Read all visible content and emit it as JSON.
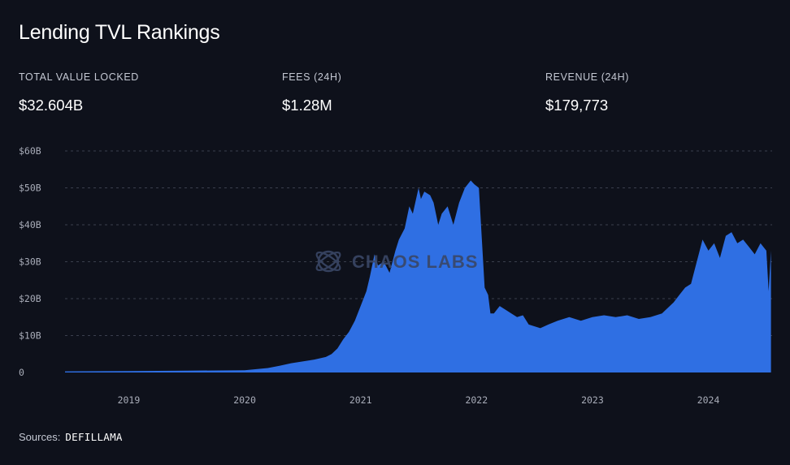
{
  "page": {
    "title": "Lending TVL Rankings",
    "metrics": [
      {
        "label": "TOTAL VALUE LOCKED",
        "value": "$32.604B"
      },
      {
        "label": "FEES (24H)",
        "value": "$1.28M"
      },
      {
        "label": "REVENUE (24H)",
        "value": "$179,773"
      }
    ],
    "watermark": "CHAOS LABS",
    "sources_label": "Sources:",
    "sources_value": "DEFILLAMA"
  },
  "colors": {
    "background": "#0e111b",
    "area_fill": "#2f6fe3",
    "gridline": "#3a3f4d",
    "text_muted": "#a9adb9"
  },
  "chart_data": {
    "type": "area",
    "y_tick_labels": [
      "0",
      "$10B",
      "$20B",
      "$30B",
      "$40B",
      "$50B",
      "$60B"
    ],
    "y_ticks": [
      0,
      10,
      20,
      30,
      40,
      50,
      60
    ],
    "x_tick_labels": [
      "2019",
      "2020",
      "2021",
      "2022",
      "2023",
      "2024"
    ],
    "x_ticks": [
      2019,
      2020,
      2021,
      2022,
      2023,
      2024
    ],
    "xlim": [
      2018.45,
      2024.55
    ],
    "ylim": [
      0,
      60
    ],
    "grid": "horizontal dashed",
    "series": [
      {
        "x": [
          2018.45,
          2019.0,
          2019.5,
          2020.0,
          2020.2,
          2020.3,
          2020.4,
          2020.5,
          2020.6,
          2020.7,
          2020.75,
          2020.8,
          2020.85,
          2020.9,
          2020.95,
          2021.0,
          2021.05,
          2021.08,
          2021.12,
          2021.15,
          2021.2,
          2021.25,
          2021.3,
          2021.33,
          2021.38,
          2021.42,
          2021.45,
          2021.5,
          2021.52,
          2021.55,
          2021.6,
          2021.63,
          2021.67,
          2021.7,
          2021.75,
          2021.8,
          2021.85,
          2021.9,
          2021.95,
          2021.98,
          2022.02,
          2022.07,
          2022.1,
          2022.12,
          2022.15,
          2022.2,
          2022.3,
          2022.35,
          2022.4,
          2022.45,
          2022.55,
          2022.62,
          2022.7,
          2022.8,
          2022.9,
          2023.0,
          2023.1,
          2023.2,
          2023.3,
          2023.4,
          2023.5,
          2023.6,
          2023.7,
          2023.75,
          2023.8,
          2023.85,
          2023.9,
          2023.95,
          2024.0,
          2024.05,
          2024.1,
          2024.15,
          2024.2,
          2024.25,
          2024.3,
          2024.35,
          2024.4,
          2024.45,
          2024.5,
          2024.52,
          2024.54
        ],
        "y": [
          0.3,
          0.4,
          0.5,
          0.6,
          1.2,
          1.8,
          2.5,
          3.0,
          3.5,
          4.2,
          5.0,
          6.5,
          9,
          11,
          14,
          18,
          22,
          26,
          32,
          29,
          30,
          27,
          33,
          36,
          39,
          45,
          43,
          50,
          47,
          49,
          48,
          46,
          40,
          43,
          45,
          40,
          46,
          50,
          52,
          51,
          50,
          23,
          21,
          16,
          16,
          18,
          16,
          15,
          15.5,
          13,
          12,
          13,
          14,
          15,
          14,
          15,
          15.5,
          15,
          15.5,
          14.5,
          15,
          16,
          19,
          21,
          23,
          24,
          30,
          36,
          33,
          35,
          31,
          37,
          38,
          35,
          36,
          34,
          32,
          35,
          33,
          22,
          33
        ]
      }
    ]
  }
}
